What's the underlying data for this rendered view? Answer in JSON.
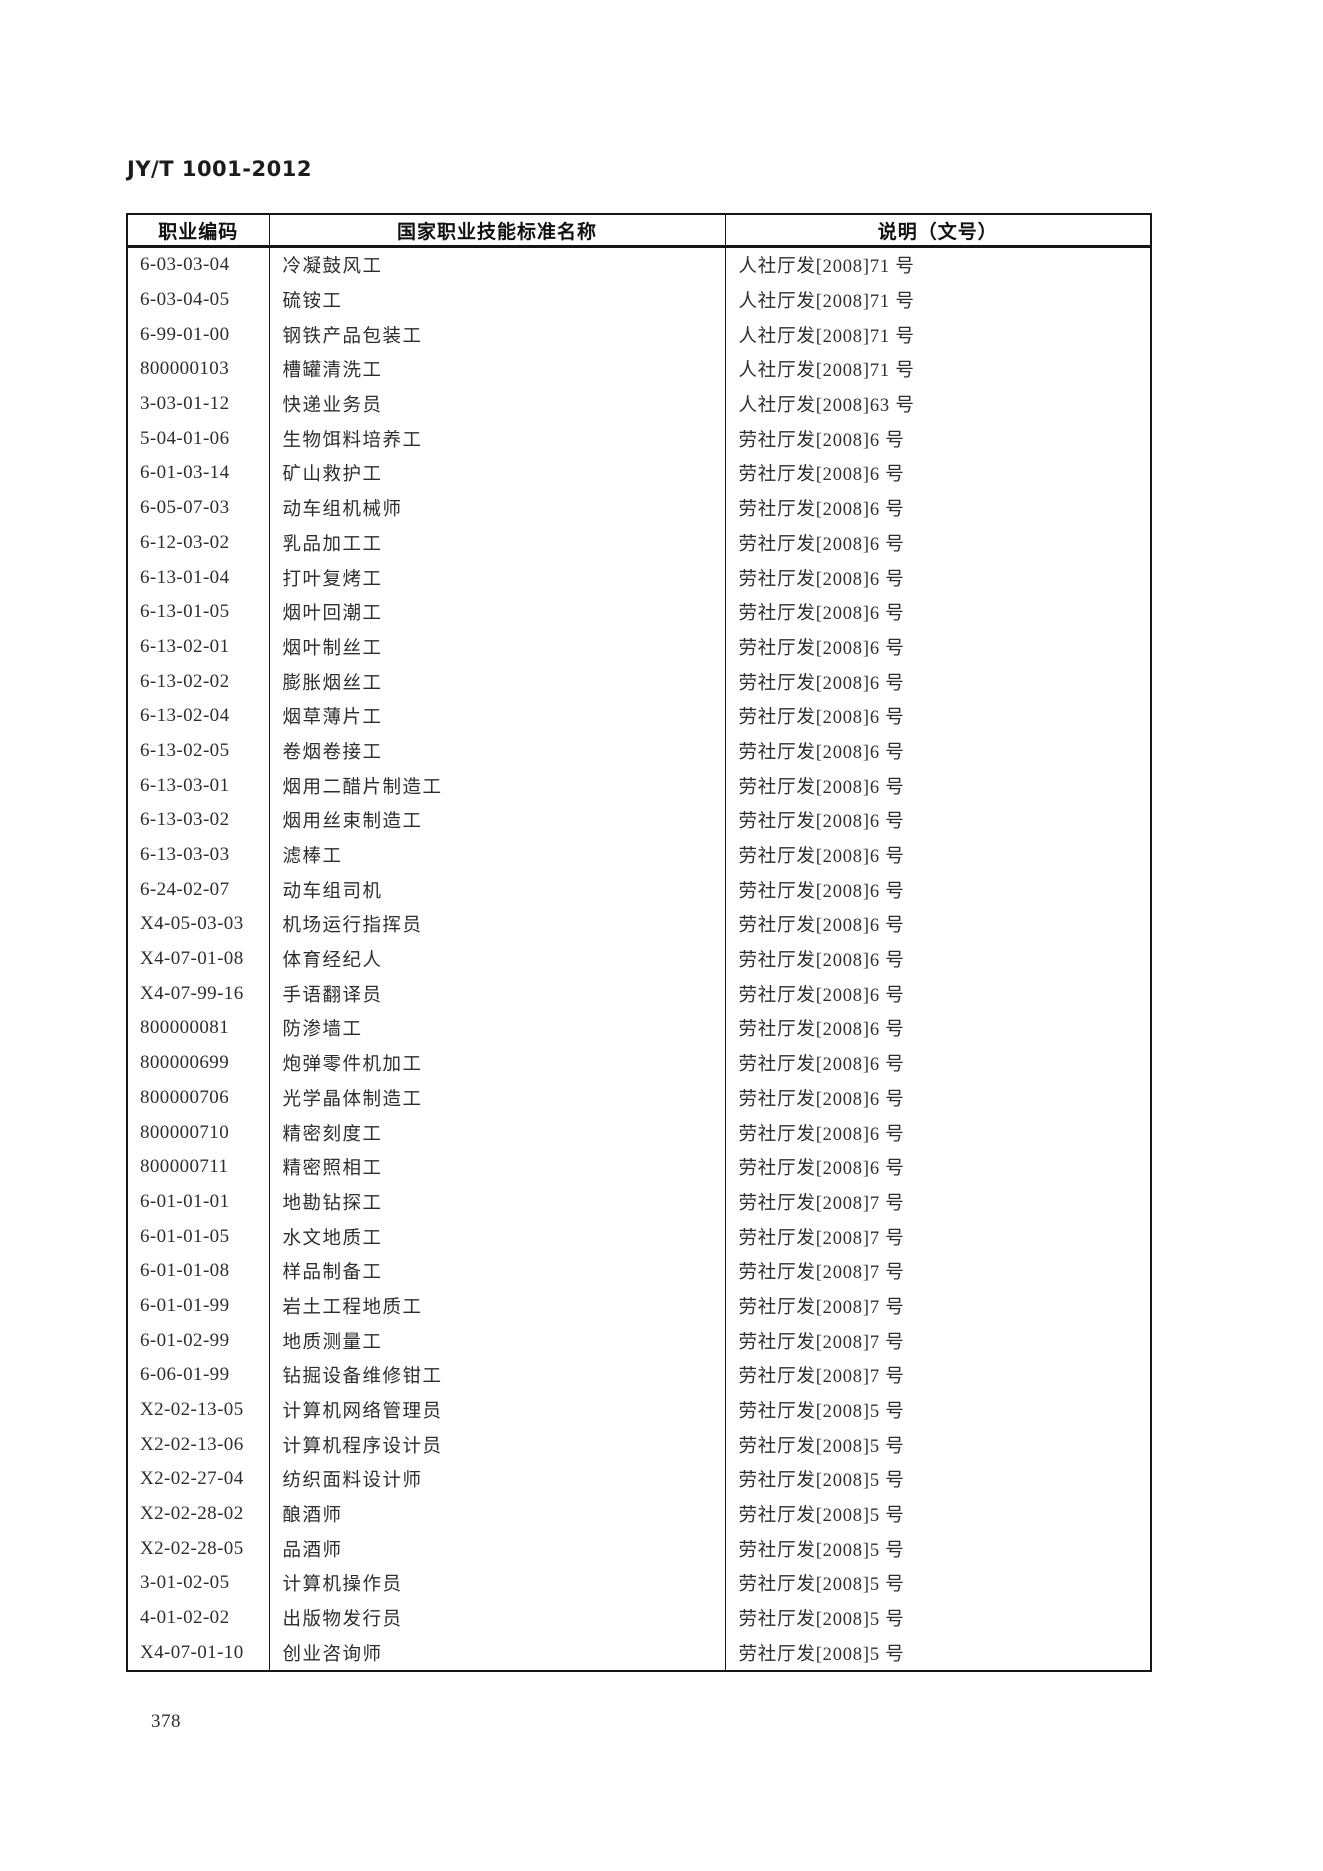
{
  "page": {
    "doc_code": "JY/T 1001-2012",
    "page_number": "378"
  },
  "table": {
    "headers": [
      "职业编码",
      "国家职业技能标准名称",
      "说明（文号）"
    ],
    "rows": [
      {
        "code": "6-03-03-04",
        "name": "冷凝鼓风工",
        "note": "人社厅发[2008]71 号"
      },
      {
        "code": "6-03-04-05",
        "name": "硫铵工",
        "note": "人社厅发[2008]71 号"
      },
      {
        "code": "6-99-01-00",
        "name": "钢铁产品包装工",
        "note": "人社厅发[2008]71 号"
      },
      {
        "code": "800000103",
        "name": "槽罐清洗工",
        "note": "人社厅发[2008]71 号"
      },
      {
        "code": "3-03-01-12",
        "name": "快递业务员",
        "note": "人社厅发[2008]63 号"
      },
      {
        "code": "5-04-01-06",
        "name": "生物饵料培养工",
        "note": "劳社厅发[2008]6 号"
      },
      {
        "code": "6-01-03-14",
        "name": "矿山救护工",
        "note": "劳社厅发[2008]6 号"
      },
      {
        "code": "6-05-07-03",
        "name": "动车组机械师",
        "note": "劳社厅发[2008]6 号"
      },
      {
        "code": "6-12-03-02",
        "name": "乳品加工工",
        "note": "劳社厅发[2008]6 号"
      },
      {
        "code": "6-13-01-04",
        "name": "打叶复烤工",
        "note": "劳社厅发[2008]6 号"
      },
      {
        "code": "6-13-01-05",
        "name": "烟叶回潮工",
        "note": "劳社厅发[2008]6 号"
      },
      {
        "code": "6-13-02-01",
        "name": "烟叶制丝工",
        "note": "劳社厅发[2008]6 号"
      },
      {
        "code": "6-13-02-02",
        "name": "膨胀烟丝工",
        "note": "劳社厅发[2008]6 号"
      },
      {
        "code": "6-13-02-04",
        "name": "烟草薄片工",
        "note": "劳社厅发[2008]6 号"
      },
      {
        "code": "6-13-02-05",
        "name": "卷烟卷接工",
        "note": "劳社厅发[2008]6 号"
      },
      {
        "code": "6-13-03-01",
        "name": "烟用二醋片制造工",
        "note": "劳社厅发[2008]6 号"
      },
      {
        "code": "6-13-03-02",
        "name": "烟用丝束制造工",
        "note": "劳社厅发[2008]6 号"
      },
      {
        "code": "6-13-03-03",
        "name": "滤棒工",
        "note": "劳社厅发[2008]6 号"
      },
      {
        "code": "6-24-02-07",
        "name": "动车组司机",
        "note": "劳社厅发[2008]6 号"
      },
      {
        "code": "X4-05-03-03",
        "name": "机场运行指挥员",
        "note": "劳社厅发[2008]6 号"
      },
      {
        "code": "X4-07-01-08",
        "name": "体育经纪人",
        "note": "劳社厅发[2008]6 号"
      },
      {
        "code": "X4-07-99-16",
        "name": "手语翻译员",
        "note": "劳社厅发[2008]6 号"
      },
      {
        "code": "800000081",
        "name": "防渗墙工",
        "note": "劳社厅发[2008]6 号"
      },
      {
        "code": "800000699",
        "name": "炮弹零件机加工",
        "note": "劳社厅发[2008]6 号"
      },
      {
        "code": "800000706",
        "name": "光学晶体制造工",
        "note": "劳社厅发[2008]6 号"
      },
      {
        "code": "800000710",
        "name": "精密刻度工",
        "note": "劳社厅发[2008]6 号"
      },
      {
        "code": "800000711",
        "name": "精密照相工",
        "note": "劳社厅发[2008]6 号"
      },
      {
        "code": "6-01-01-01",
        "name": "地勘钻探工",
        "note": "劳社厅发[2008]7 号"
      },
      {
        "code": "6-01-01-05",
        "name": "水文地质工",
        "note": "劳社厅发[2008]7 号"
      },
      {
        "code": "6-01-01-08",
        "name": "样品制备工",
        "note": "劳社厅发[2008]7 号"
      },
      {
        "code": "6-01-01-99",
        "name": "岩土工程地质工",
        "note": "劳社厅发[2008]7 号"
      },
      {
        "code": "6-01-02-99",
        "name": "地质测量工",
        "note": "劳社厅发[2008]7 号"
      },
      {
        "code": "6-06-01-99",
        "name": "钻掘设备维修钳工",
        "note": "劳社厅发[2008]7 号"
      },
      {
        "code": "X2-02-13-05",
        "name": "计算机网络管理员",
        "note": "劳社厅发[2008]5 号"
      },
      {
        "code": "X2-02-13-06",
        "name": "计算机程序设计员",
        "note": "劳社厅发[2008]5 号"
      },
      {
        "code": "X2-02-27-04",
        "name": "纺织面料设计师",
        "note": "劳社厅发[2008]5 号"
      },
      {
        "code": "X2-02-28-02",
        "name": "酿酒师",
        "note": "劳社厅发[2008]5 号"
      },
      {
        "code": "X2-02-28-05",
        "name": "品酒师",
        "note": "劳社厅发[2008]5 号"
      },
      {
        "code": "3-01-02-05",
        "name": "计算机操作员",
        "note": "劳社厅发[2008]5 号"
      },
      {
        "code": "4-01-02-02",
        "name": "出版物发行员",
        "note": "劳社厅发[2008]5 号"
      },
      {
        "code": "X4-07-01-10",
        "name": "创业咨询师",
        "note": "劳社厅发[2008]5 号"
      }
    ]
  }
}
